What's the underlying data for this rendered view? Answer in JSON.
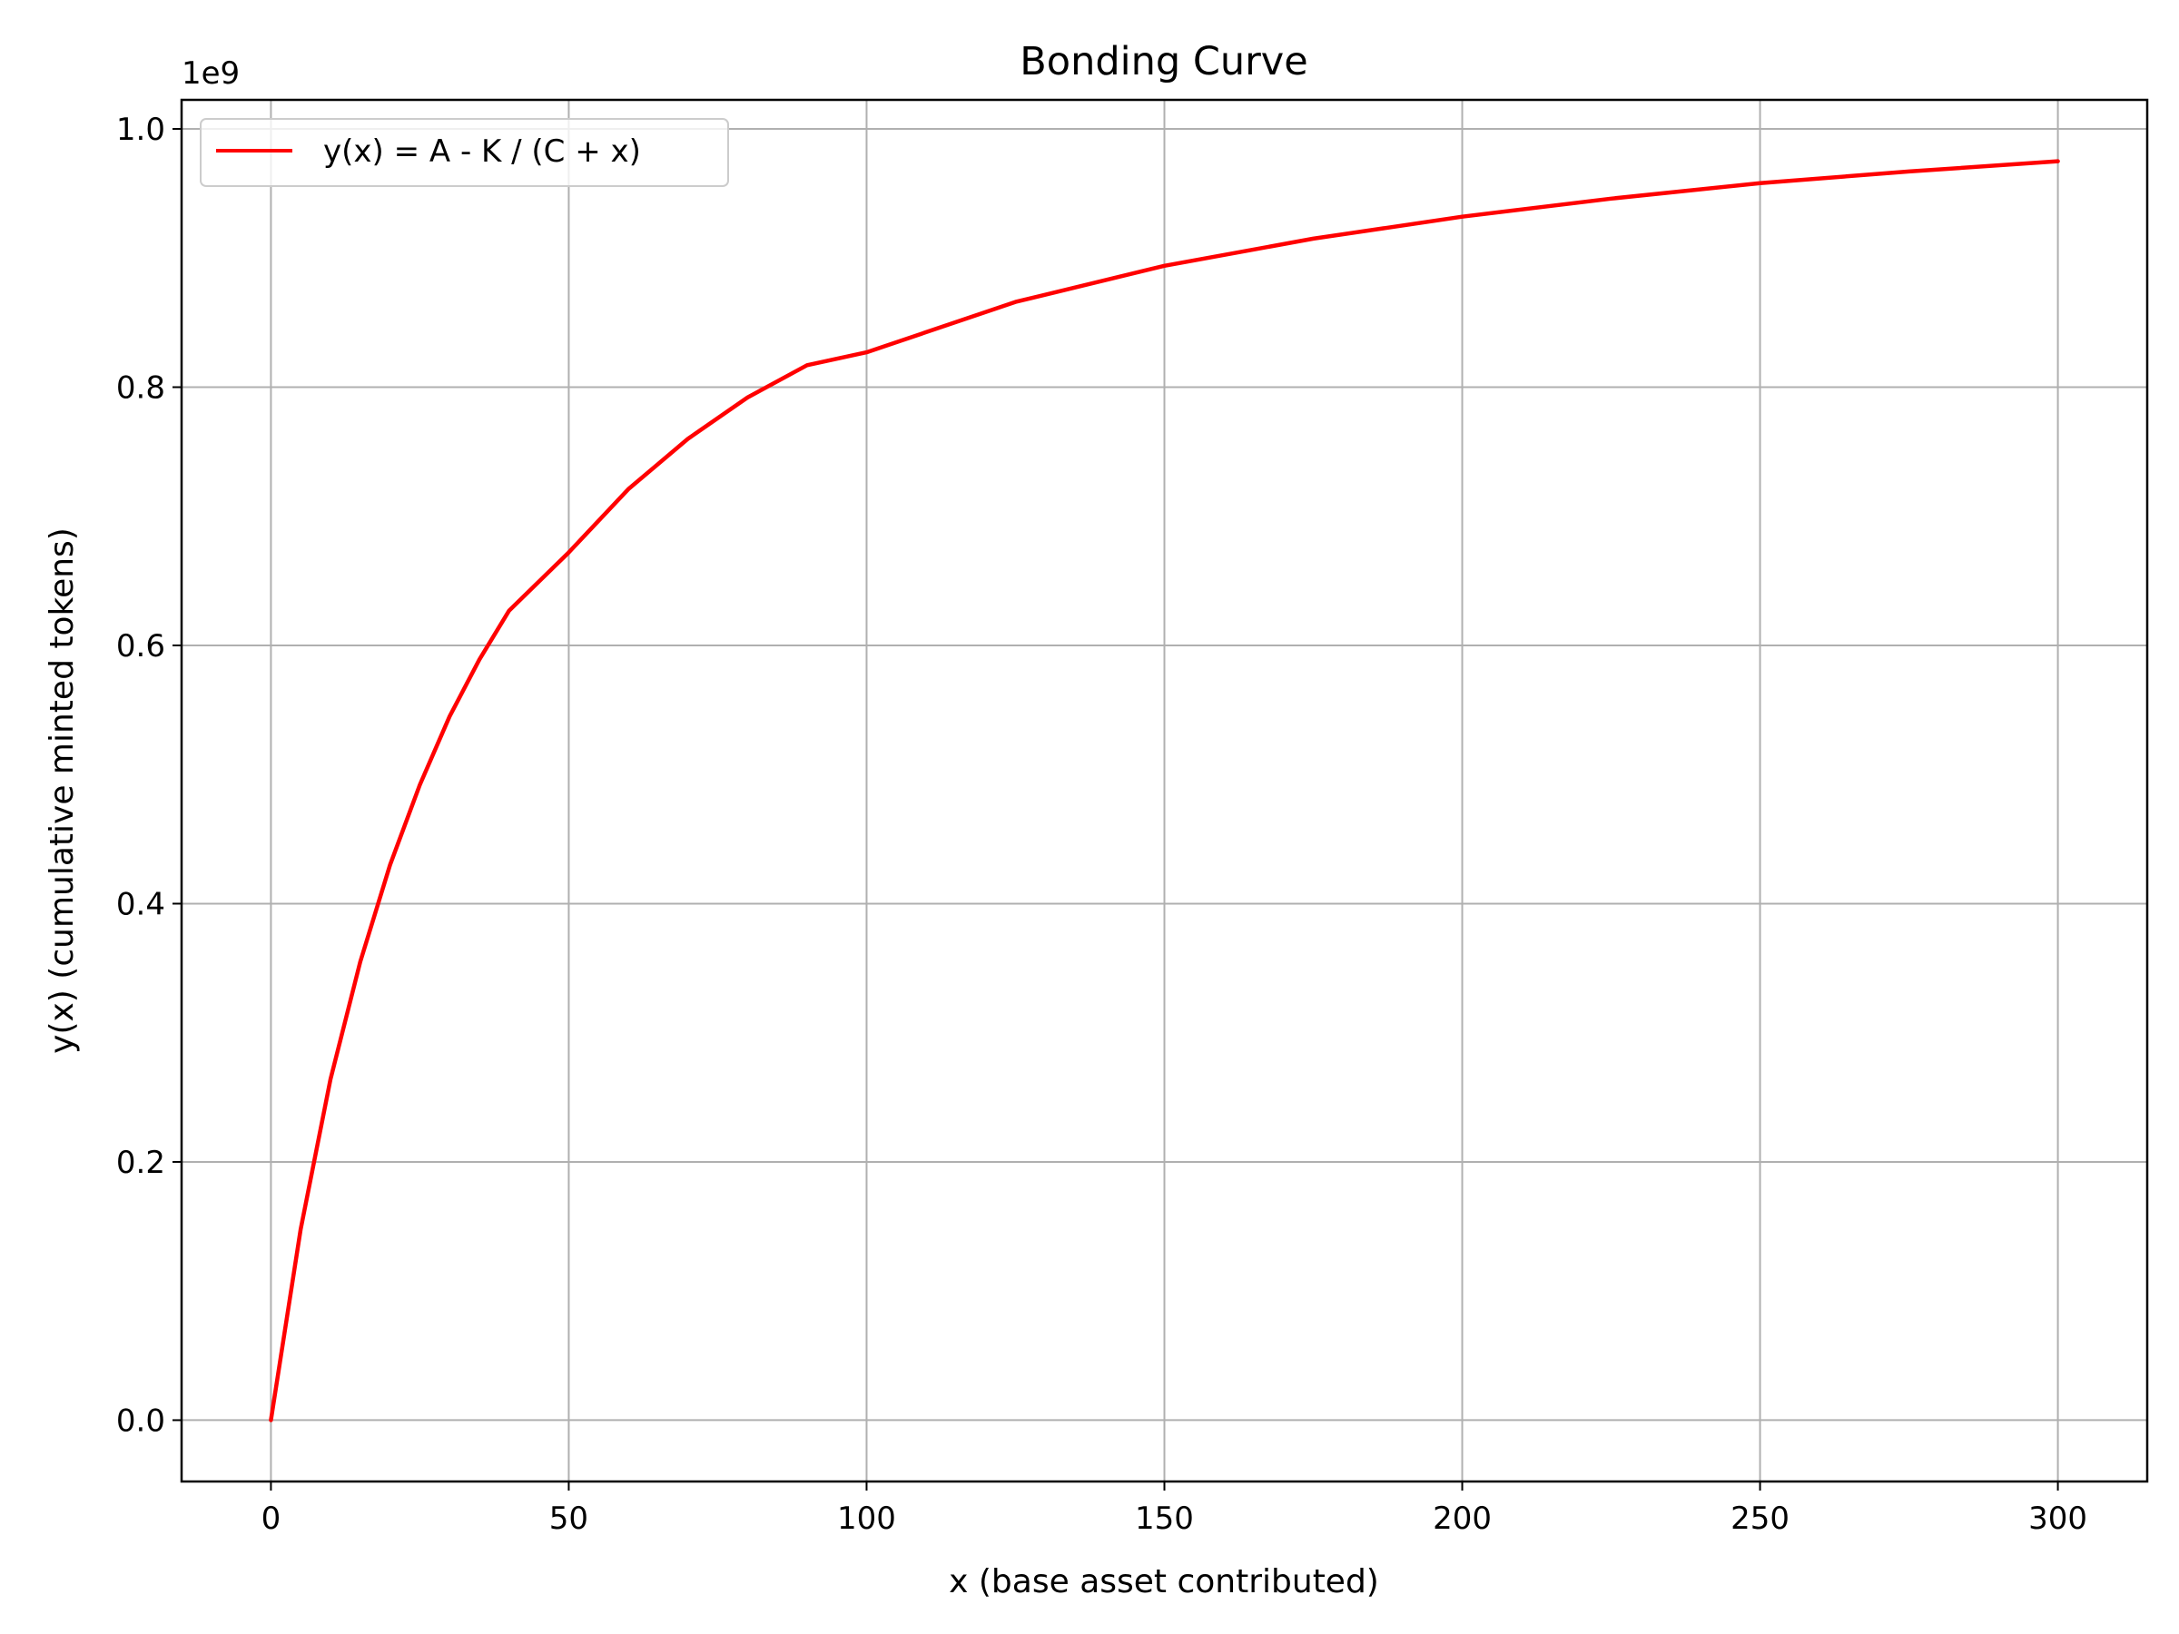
{
  "chart_data": {
    "type": "line",
    "title": "Bonding Curve",
    "xlabel": "x (base asset contributed)",
    "ylabel": "y(x) (cumulative minted tokens)",
    "y_offset_label": "1e9",
    "xlim": [
      -15,
      315
    ],
    "ylim": [
      -47500000,
      1022500000
    ],
    "x_ticks": [
      0,
      50,
      100,
      150,
      200,
      250,
      300
    ],
    "x_tick_labels": [
      "0",
      "50",
      "100",
      "150",
      "200",
      "250",
      "300"
    ],
    "y_ticks": [
      0,
      200000000,
      400000000,
      600000000,
      800000000,
      1000000000
    ],
    "y_tick_labels": [
      "0.0",
      "0.2",
      "0.4",
      "0.6",
      "0.8",
      "1.0"
    ],
    "grid": true,
    "legend_position": "top-left",
    "series": [
      {
        "name": "y(x) = A - K / (C + x)",
        "color": "#ff0000",
        "x": [
          0,
          5,
          10,
          15,
          20,
          25,
          30,
          35,
          40,
          50,
          60,
          70,
          80,
          90,
          100,
          125,
          150,
          175,
          200,
          225,
          250,
          275,
          300
        ],
        "y": [
          0,
          148000000,
          264000000,
          355000000,
          430000000,
          492000000,
          545000000,
          589000000,
          627000000,
          672000000,
          721000000,
          760000000,
          792000000,
          817000000,
          827000000,
          866000000,
          894000000,
          915000000,
          932000000,
          946000000,
          958000000,
          967000000,
          975000000
        ]
      }
    ]
  }
}
